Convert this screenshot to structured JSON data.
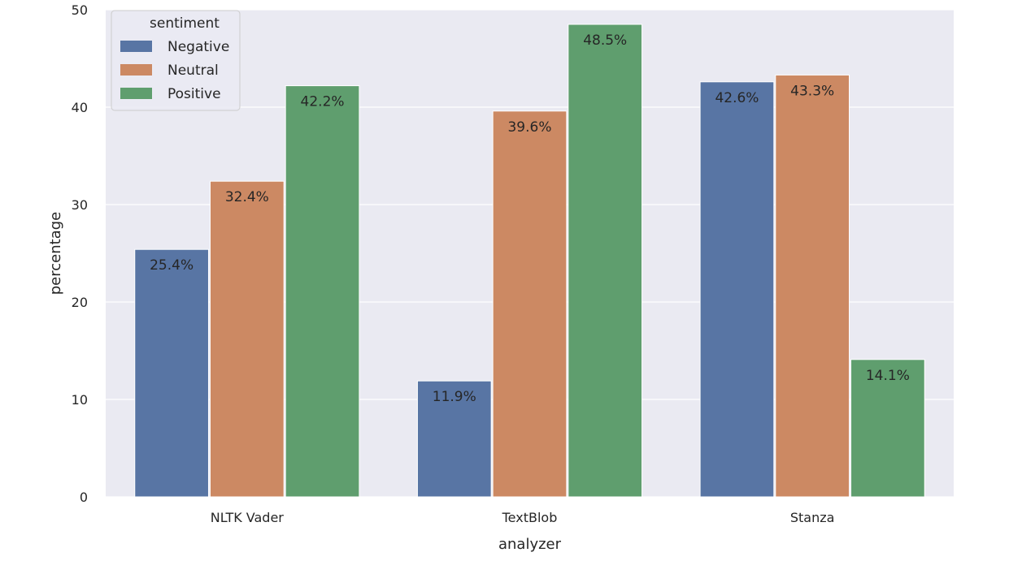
{
  "chart_data": {
    "type": "bar",
    "title": "",
    "xlabel": "analyzer",
    "ylabel": "percentage",
    "categories": [
      "NLTK Vader",
      "TextBlob",
      "Stanza"
    ],
    "ylim": [
      0,
      50
    ],
    "yticks": [
      0,
      10,
      20,
      30,
      40,
      50
    ],
    "grid": true,
    "legend": {
      "title": "sentiment",
      "placement": "top-left"
    },
    "series": [
      {
        "name": "Negative",
        "color": "#5875a4",
        "values": [
          25.4,
          11.9,
          42.6
        ],
        "labels": [
          "25.4%",
          "11.9%",
          "42.6%"
        ]
      },
      {
        "name": "Neutral",
        "color": "#cc8963",
        "values": [
          32.4,
          39.6,
          43.3
        ],
        "labels": [
          "32.4%",
          "39.6%",
          "43.3%"
        ]
      },
      {
        "name": "Positive",
        "color": "#5f9e6e",
        "values": [
          42.2,
          48.5,
          14.1
        ],
        "labels": [
          "42.2%",
          "48.5%",
          "14.1%"
        ]
      }
    ]
  }
}
